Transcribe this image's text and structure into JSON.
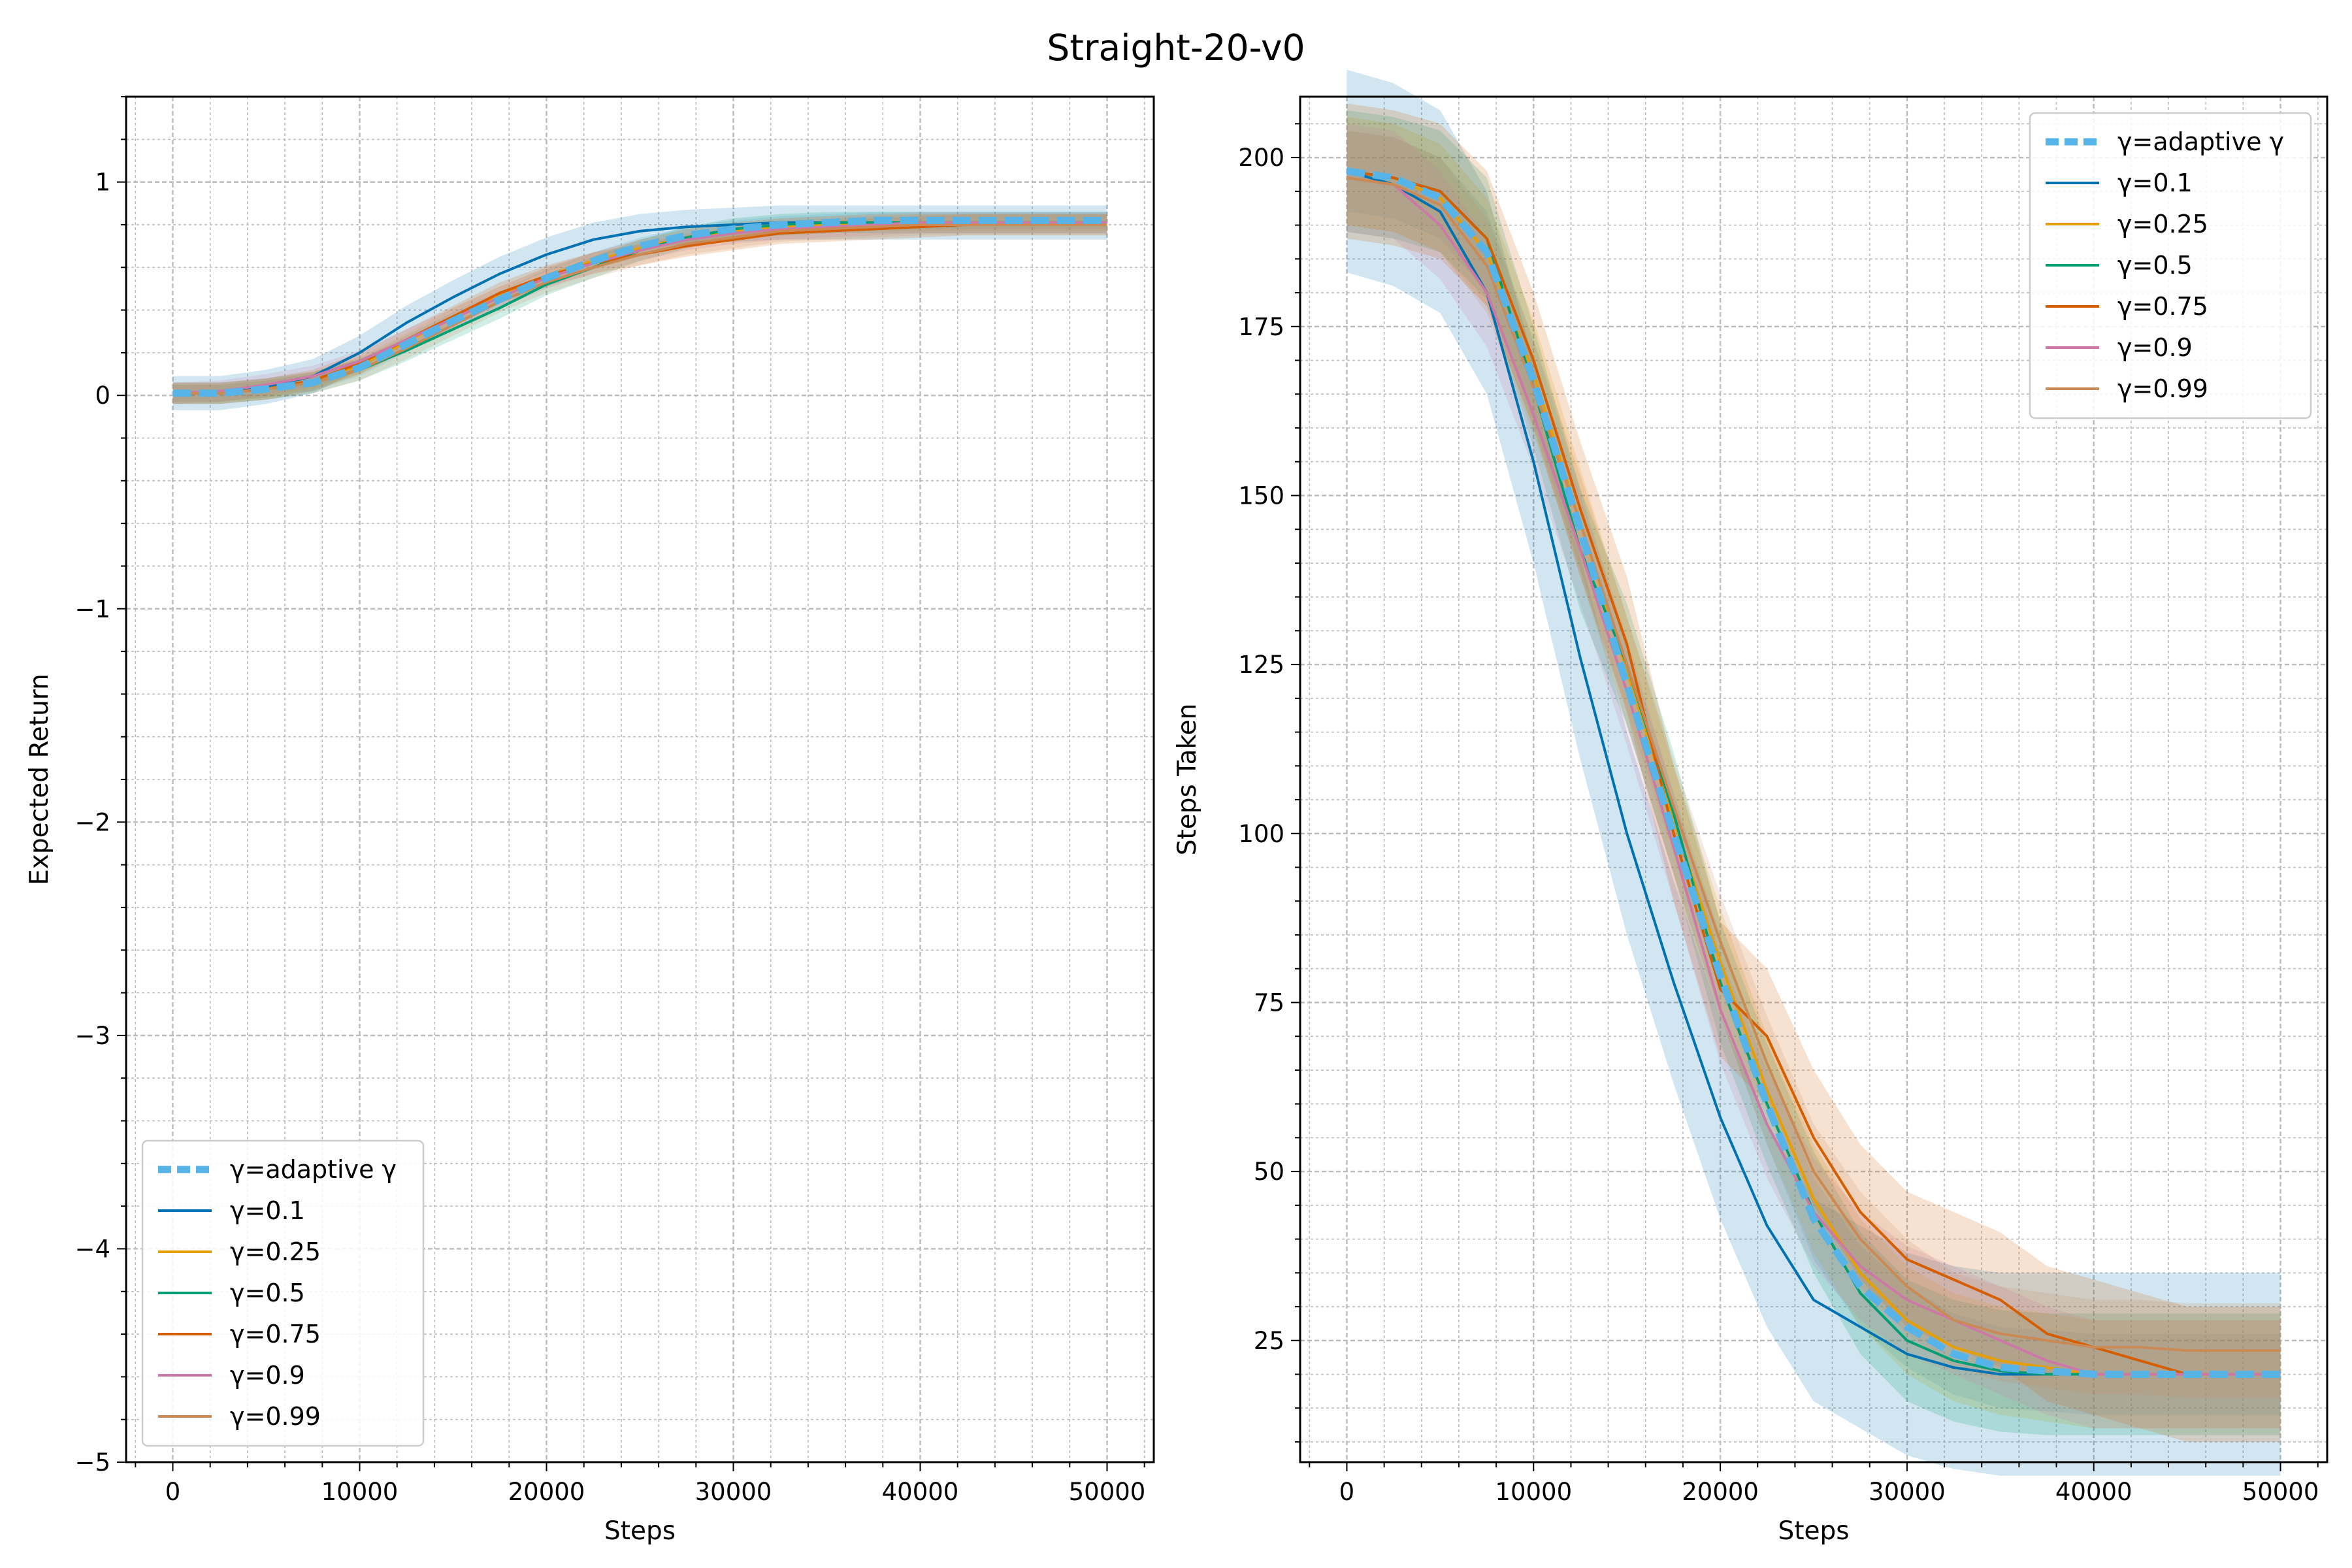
{
  "figure": {
    "title": "Straight-20-v0"
  },
  "series_styles": [
    {
      "name": "γ=adaptive γ",
      "color": "#56B4E9",
      "dashed": true,
      "band": true
    },
    {
      "name": "γ=0.1",
      "color": "#0072B2",
      "dashed": false,
      "band": true
    },
    {
      "name": "γ=0.25",
      "color": "#E69F00",
      "dashed": false,
      "band": true
    },
    {
      "name": "γ=0.5",
      "color": "#009E73",
      "dashed": false,
      "band": true
    },
    {
      "name": "γ=0.75",
      "color": "#D55E00",
      "dashed": false,
      "band": true
    },
    {
      "name": "γ=0.9",
      "color": "#CC79A7",
      "dashed": false,
      "band": true
    },
    {
      "name": "γ=0.99",
      "color": "#CA8A56",
      "dashed": false,
      "band": true
    }
  ],
  "chart_data": [
    {
      "type": "line",
      "title": "",
      "xlabel": "Steps",
      "ylabel": "Expected Return",
      "xlim": [
        -2500,
        52500
      ],
      "ylim": [
        -5,
        1.4
      ],
      "xticks": [
        0,
        10000,
        20000,
        30000,
        40000,
        50000
      ],
      "xtick_labels": [
        "0",
        "10000",
        "20000",
        "30000",
        "40000",
        "50000"
      ],
      "yticks": [
        -5,
        -4,
        -3,
        -2,
        -1,
        0,
        1
      ],
      "ytick_labels": [
        "−5",
        "−4",
        "−3",
        "−2",
        "−1",
        "0",
        "1"
      ],
      "grid": true,
      "legend": "lower-left",
      "x": [
        0,
        2500,
        5000,
        7500,
        10000,
        12500,
        15000,
        17500,
        20000,
        22500,
        25000,
        27500,
        30000,
        32500,
        35000,
        37500,
        40000,
        42500,
        45000,
        47500,
        50000
      ],
      "series": [
        {
          "name": "γ=adaptive γ",
          "values": [
            0.01,
            0.01,
            0.03,
            0.06,
            0.13,
            0.24,
            0.35,
            0.45,
            0.55,
            0.63,
            0.7,
            0.75,
            0.78,
            0.8,
            0.81,
            0.82,
            0.82,
            0.82,
            0.82,
            0.82,
            0.82
          ],
          "band": 0.04
        },
        {
          "name": "γ=0.1",
          "values": [
            0.01,
            0.01,
            0.04,
            0.09,
            0.2,
            0.34,
            0.46,
            0.57,
            0.66,
            0.73,
            0.77,
            0.79,
            0.8,
            0.81,
            0.81,
            0.81,
            0.81,
            0.81,
            0.81,
            0.81,
            0.81
          ],
          "band": 0.08
        },
        {
          "name": "γ=0.25",
          "values": [
            0.01,
            0.01,
            0.03,
            0.07,
            0.14,
            0.25,
            0.37,
            0.47,
            0.56,
            0.63,
            0.69,
            0.74,
            0.77,
            0.79,
            0.8,
            0.81,
            0.81,
            0.81,
            0.81,
            0.81,
            0.81
          ],
          "band": 0.04
        },
        {
          "name": "γ=0.5",
          "values": [
            0.01,
            0.01,
            0.03,
            0.06,
            0.12,
            0.21,
            0.31,
            0.41,
            0.52,
            0.6,
            0.68,
            0.74,
            0.78,
            0.8,
            0.81,
            0.81,
            0.81,
            0.81,
            0.81,
            0.81,
            0.81
          ],
          "band": 0.05
        },
        {
          "name": "γ=0.75",
          "values": [
            0.01,
            0.01,
            0.03,
            0.07,
            0.15,
            0.26,
            0.37,
            0.48,
            0.56,
            0.62,
            0.66,
            0.7,
            0.73,
            0.76,
            0.77,
            0.78,
            0.79,
            0.8,
            0.8,
            0.8,
            0.8
          ],
          "band": 0.05
        },
        {
          "name": "γ=0.9",
          "values": [
            0.01,
            0.02,
            0.05,
            0.09,
            0.16,
            0.26,
            0.36,
            0.46,
            0.55,
            0.62,
            0.68,
            0.73,
            0.76,
            0.78,
            0.79,
            0.8,
            0.81,
            0.81,
            0.81,
            0.81,
            0.81
          ],
          "band": 0.05
        },
        {
          "name": "γ=0.99",
          "values": [
            0.01,
            0.01,
            0.03,
            0.06,
            0.12,
            0.22,
            0.33,
            0.44,
            0.53,
            0.6,
            0.66,
            0.71,
            0.74,
            0.77,
            0.78,
            0.79,
            0.8,
            0.8,
            0.8,
            0.8,
            0.8
          ],
          "band": 0.05
        }
      ]
    },
    {
      "type": "line",
      "title": "",
      "xlabel": "Steps",
      "ylabel": "Steps Taken",
      "xlim": [
        -2500,
        52500
      ],
      "ylim": [
        7,
        209
      ],
      "xticks": [
        0,
        10000,
        20000,
        30000,
        40000,
        50000
      ],
      "xtick_labels": [
        "0",
        "10000",
        "20000",
        "30000",
        "40000",
        "50000"
      ],
      "yticks": [
        25,
        50,
        75,
        100,
        125,
        150,
        175,
        200
      ],
      "ytick_labels": [
        "25",
        "50",
        "75",
        "100",
        "125",
        "150",
        "175",
        "200"
      ],
      "grid": true,
      "legend": "upper-right",
      "x": [
        0,
        2500,
        5000,
        7500,
        10000,
        12500,
        15000,
        17500,
        20000,
        22500,
        25000,
        27500,
        30000,
        32500,
        35000,
        37500,
        40000,
        42500,
        45000,
        47500,
        50000
      ],
      "series": [
        {
          "name": "γ=adaptive γ",
          "values": [
            198,
            197,
            194,
            186,
            167,
            145,
            122,
            100,
            79,
            60,
            43,
            33,
            27,
            23,
            21,
            20.5,
            20,
            20,
            20,
            20,
            20
          ],
          "band": 6
        },
        {
          "name": "γ=0.1",
          "values": [
            198,
            196,
            192,
            180,
            155,
            126,
            100,
            78,
            58,
            42,
            31,
            27,
            23,
            21,
            20,
            20,
            20,
            20,
            20,
            20,
            20
          ],
          "band": 15
        },
        {
          "name": "γ=0.25",
          "values": [
            198,
            197,
            194,
            186,
            168,
            146,
            124,
            102,
            81,
            62,
            46,
            35,
            28,
            24,
            22,
            21,
            20,
            20,
            20,
            20,
            20
          ],
          "band": 8
        },
        {
          "name": "γ=0.5",
          "values": [
            198,
            197,
            195,
            188,
            166,
            142,
            125,
            103,
            78,
            60,
            44,
            32,
            25,
            22,
            20.5,
            20,
            20,
            20,
            20,
            20,
            20
          ],
          "band": 9
        },
        {
          "name": "γ=0.75",
          "values": [
            198,
            197,
            195,
            188,
            170,
            148,
            128,
            100,
            77,
            70,
            55,
            44,
            37,
            34,
            31,
            26,
            24,
            22,
            20,
            20,
            20
          ],
          "band": 10
        },
        {
          "name": "γ=0.9",
          "values": [
            197,
            196,
            190,
            180,
            162,
            142,
            121,
            98,
            74,
            57,
            44,
            36,
            31,
            28,
            25,
            22,
            20,
            20,
            20,
            20,
            20
          ],
          "band": 8
        },
        {
          "name": "γ=0.99",
          "values": [
            197,
            196,
            193,
            184,
            166,
            146,
            125,
            104,
            84,
            66,
            50,
            40,
            33,
            28,
            26,
            25,
            24,
            24,
            23.5,
            23.5,
            23.5
          ],
          "band": 7
        }
      ]
    }
  ]
}
